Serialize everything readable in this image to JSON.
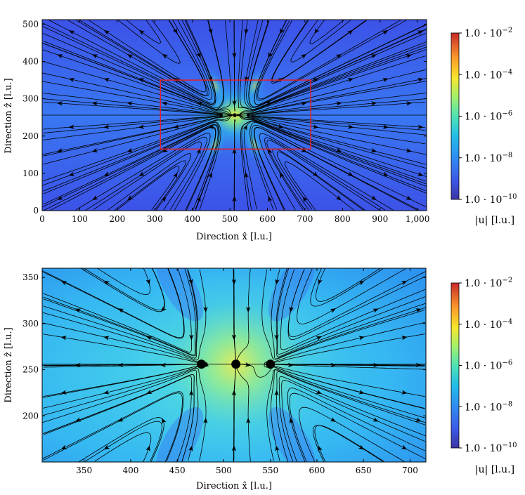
{
  "chart_data": [
    {
      "type": "heatmap",
      "title": "",
      "xlabel": "Direction x̂ [l.u.]",
      "ylabel": "Direction ẑ [l.u.]",
      "xlim": [
        0,
        1024
      ],
      "ylim": [
        0,
        512
      ],
      "xticks": [
        0,
        100,
        200,
        300,
        400,
        500,
        600,
        700,
        800,
        900,
        1000
      ],
      "xtick_labels": [
        "0",
        "100",
        "200",
        "300",
        "400",
        "500",
        "600",
        "700",
        "800",
        "900",
        "1,000"
      ],
      "yticks": [
        0,
        100,
        200,
        300,
        400,
        500
      ],
      "ytick_labels": [
        "0",
        "100",
        "200",
        "300",
        "400",
        "500"
      ],
      "colorbar": {
        "label": "|u| [l.u.]",
        "scale": "log",
        "range": [
          1e-10,
          0.01
        ],
        "ticks": [
          1e-10,
          1e-08,
          1e-06,
          0.0001,
          0.01
        ],
        "tick_labels": [
          "1.0 · 10−10",
          "1.0 · 10−8",
          "1.0 · 10−6",
          "1.0 · 10−4",
          "1.0 · 10−2"
        ]
      },
      "particles": [
        {
          "x": 476,
          "z": 256
        },
        {
          "x": 513,
          "z": 256
        },
        {
          "x": 550,
          "z": 256
        }
      ],
      "zoom_box": {
        "x": [
          315,
          715
        ],
        "z": [
          165,
          350
        ],
        "color": "#e3202a"
      },
      "grid": false
    },
    {
      "type": "heatmap",
      "title": "",
      "xlabel": "Direction x̂ [l.u.]",
      "ylabel": "Direction ẑ [l.u.]",
      "xlim": [
        305,
        717
      ],
      "ylim": [
        150,
        360
      ],
      "xticks": [
        350,
        400,
        450,
        500,
        550,
        600,
        650,
        700
      ],
      "xtick_labels": [
        "350",
        "400",
        "450",
        "500",
        "550",
        "600",
        "650",
        "700"
      ],
      "yticks": [
        200,
        250,
        300,
        350
      ],
      "ytick_labels": [
        "200",
        "250",
        "300",
        "350"
      ],
      "colorbar": {
        "label": "|u| [l.u.]",
        "scale": "log",
        "range": [
          1e-10,
          0.01
        ],
        "ticks": [
          1e-10,
          1e-08,
          1e-06,
          0.0001,
          0.01
        ],
        "tick_labels": [
          "1.0 · 10−10",
          "1.0 · 10−8",
          "1.0 · 10−6",
          "1.0 · 10−4",
          "1.0 · 10−2"
        ]
      },
      "particles": [
        {
          "x": 476,
          "z": 256
        },
        {
          "x": 513,
          "z": 256
        },
        {
          "x": 550,
          "z": 256
        }
      ],
      "grid": false
    }
  ]
}
